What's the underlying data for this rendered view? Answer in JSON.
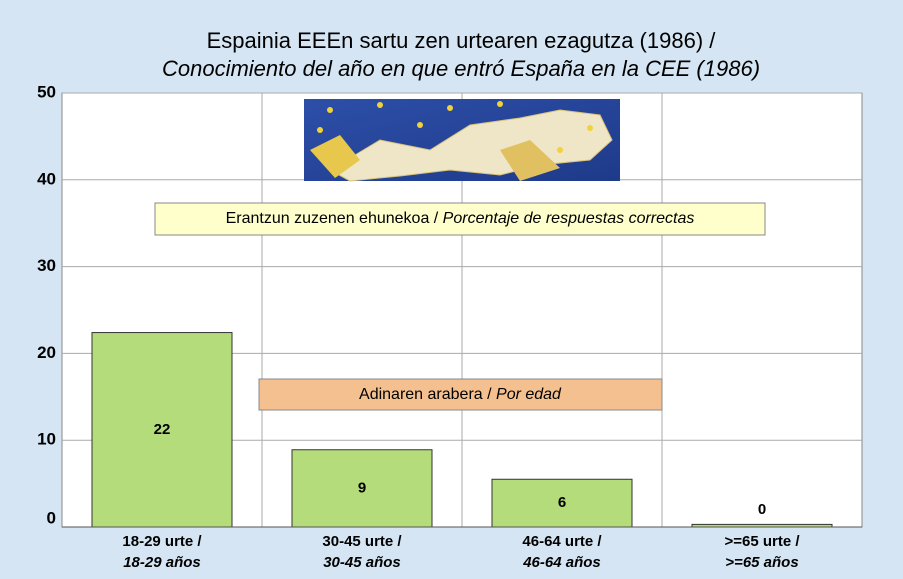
{
  "chart_data": {
    "type": "bar",
    "title": [
      "Espainia EEEn sartu zen urtearen ezagutza (1986) /",
      "Conocimiento del año en que entró España en la CEE (1986)"
    ],
    "annotations": [
      [
        "Erantzun zuzenen ehunekoa / ",
        "Porcentaje de respuestas correctas"
      ],
      [
        "Adinaren arabera / ",
        "Por edad"
      ]
    ],
    "categories": [
      [
        "18-29 urte /",
        "18-29 años"
      ],
      [
        "30-45 urte /",
        "30-45 años"
      ],
      [
        "46-64 urte /",
        "46-64 años"
      ],
      [
        ">=65 urte /",
        ">=65 años"
      ]
    ],
    "values": [
      22.4,
      8.9,
      5.5,
      0.3
    ],
    "value_labels": [
      "22",
      "9",
      "6",
      "0"
    ],
    "color": "#b5dc7a",
    "ylim": [
      0,
      50
    ],
    "yticks": [
      0,
      10,
      20,
      30,
      40,
      50
    ],
    "grid": true
  }
}
